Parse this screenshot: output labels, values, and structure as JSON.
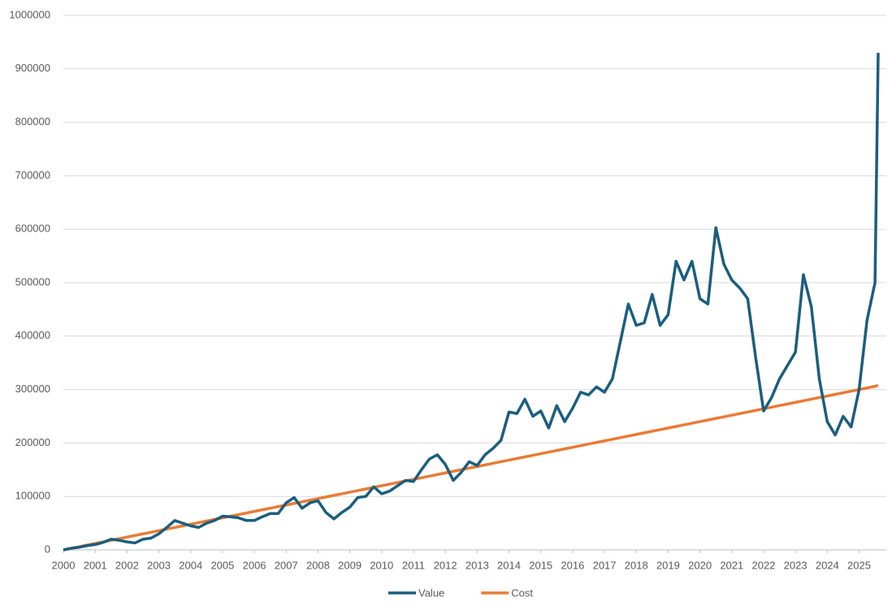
{
  "chart_data": {
    "type": "line",
    "x": [
      2000,
      2000.25,
      2000.5,
      2000.75,
      2001,
      2001.25,
      2001.5,
      2001.75,
      2002,
      2002.25,
      2002.5,
      2002.75,
      2003,
      2003.25,
      2003.5,
      2003.75,
      2004,
      2004.25,
      2004.5,
      2004.75,
      2005,
      2005.25,
      2005.5,
      2005.75,
      2006,
      2006.25,
      2006.5,
      2006.75,
      2007,
      2007.25,
      2007.5,
      2007.75,
      2008,
      2008.25,
      2008.5,
      2008.75,
      2009,
      2009.25,
      2009.5,
      2009.75,
      2010,
      2010.25,
      2010.5,
      2010.75,
      2011,
      2011.25,
      2011.5,
      2011.75,
      2012,
      2012.25,
      2012.5,
      2012.75,
      2013,
      2013.25,
      2013.5,
      2013.75,
      2014,
      2014.25,
      2014.5,
      2014.75,
      2015,
      2015.25,
      2015.5,
      2015.75,
      2016,
      2016.25,
      2016.5,
      2016.75,
      2017,
      2017.25,
      2017.5,
      2017.75,
      2018,
      2018.25,
      2018.5,
      2018.75,
      2019,
      2019.25,
      2019.5,
      2019.75,
      2020,
      2020.25,
      2020.5,
      2020.75,
      2021,
      2021.25,
      2021.5,
      2021.75,
      2022,
      2022.25,
      2022.5,
      2022.75,
      2023,
      2023.25,
      2023.5,
      2023.75,
      2024,
      2024.25,
      2024.5,
      2024.75,
      2025,
      2025.25,
      2025.5,
      2025.6
    ],
    "series": [
      {
        "name": "Value",
        "color": "#1b5e7e",
        "values": [
          0,
          3000,
          5000,
          8000,
          10000,
          14000,
          20000,
          18000,
          15000,
          13000,
          20000,
          22000,
          30000,
          42000,
          55000,
          50000,
          45000,
          42000,
          50000,
          55000,
          63000,
          62000,
          60000,
          55000,
          55000,
          62000,
          68000,
          68000,
          88000,
          98000,
          78000,
          88000,
          92000,
          70000,
          58000,
          70000,
          80000,
          98000,
          100000,
          118000,
          105000,
          110000,
          120000,
          130000,
          128000,
          150000,
          170000,
          178000,
          160000,
          130000,
          145000,
          165000,
          158000,
          178000,
          190000,
          205000,
          258000,
          255000,
          282000,
          250000,
          260000,
          228000,
          270000,
          240000,
          265000,
          295000,
          290000,
          305000,
          295000,
          320000,
          390000,
          460000,
          420000,
          425000,
          478000,
          420000,
          440000,
          540000,
          505000,
          540000,
          470000,
          460000,
          603000,
          535000,
          505000,
          490000,
          470000,
          360000,
          260000,
          285000,
          320000,
          345000,
          370000,
          515000,
          455000,
          320000,
          240000,
          215000,
          250000,
          230000,
          300000,
          430000,
          500000,
          930000
        ]
      },
      {
        "name": "Cost",
        "color": "#e97b35",
        "values": [
          0,
          3000,
          6000,
          9000,
          12000,
          15000,
          18000,
          21000,
          24000,
          27000,
          30000,
          33000,
          36000,
          39000,
          42000,
          45000,
          48000,
          51000,
          54000,
          57000,
          60000,
          63000,
          66000,
          69000,
          72000,
          75000,
          78000,
          81000,
          84000,
          87000,
          90000,
          93000,
          96000,
          99000,
          102000,
          105000,
          108000,
          111000,
          114000,
          117000,
          120000,
          123000,
          126000,
          129000,
          132000,
          135000,
          138000,
          141000,
          144000,
          147000,
          150000,
          153000,
          156000,
          159000,
          162000,
          165000,
          168000,
          171000,
          174000,
          177000,
          180000,
          183000,
          186000,
          189000,
          192000,
          195000,
          198000,
          201000,
          204000,
          207000,
          210000,
          213000,
          216000,
          219000,
          222000,
          225000,
          228000,
          231000,
          234000,
          237000,
          240000,
          243000,
          246000,
          249000,
          252000,
          255000,
          258000,
          261000,
          264000,
          267000,
          270000,
          273000,
          276000,
          279000,
          282000,
          285000,
          288000,
          291000,
          294000,
          297000,
          300000,
          303000,
          306000,
          308000
        ]
      }
    ],
    "xlim": [
      2000,
      2025.6
    ],
    "xticks": [
      2000,
      2001,
      2002,
      2003,
      2004,
      2005,
      2006,
      2007,
      2008,
      2009,
      2010,
      2011,
      2012,
      2013,
      2014,
      2015,
      2016,
      2017,
      2018,
      2019,
      2020,
      2021,
      2022,
      2023,
      2024,
      2025
    ],
    "ylim": [
      0,
      1000000
    ],
    "yticks": [
      0,
      100000,
      200000,
      300000,
      400000,
      500000,
      600000,
      700000,
      800000,
      900000,
      1000000
    ],
    "grid": true,
    "legend": "bottom"
  }
}
